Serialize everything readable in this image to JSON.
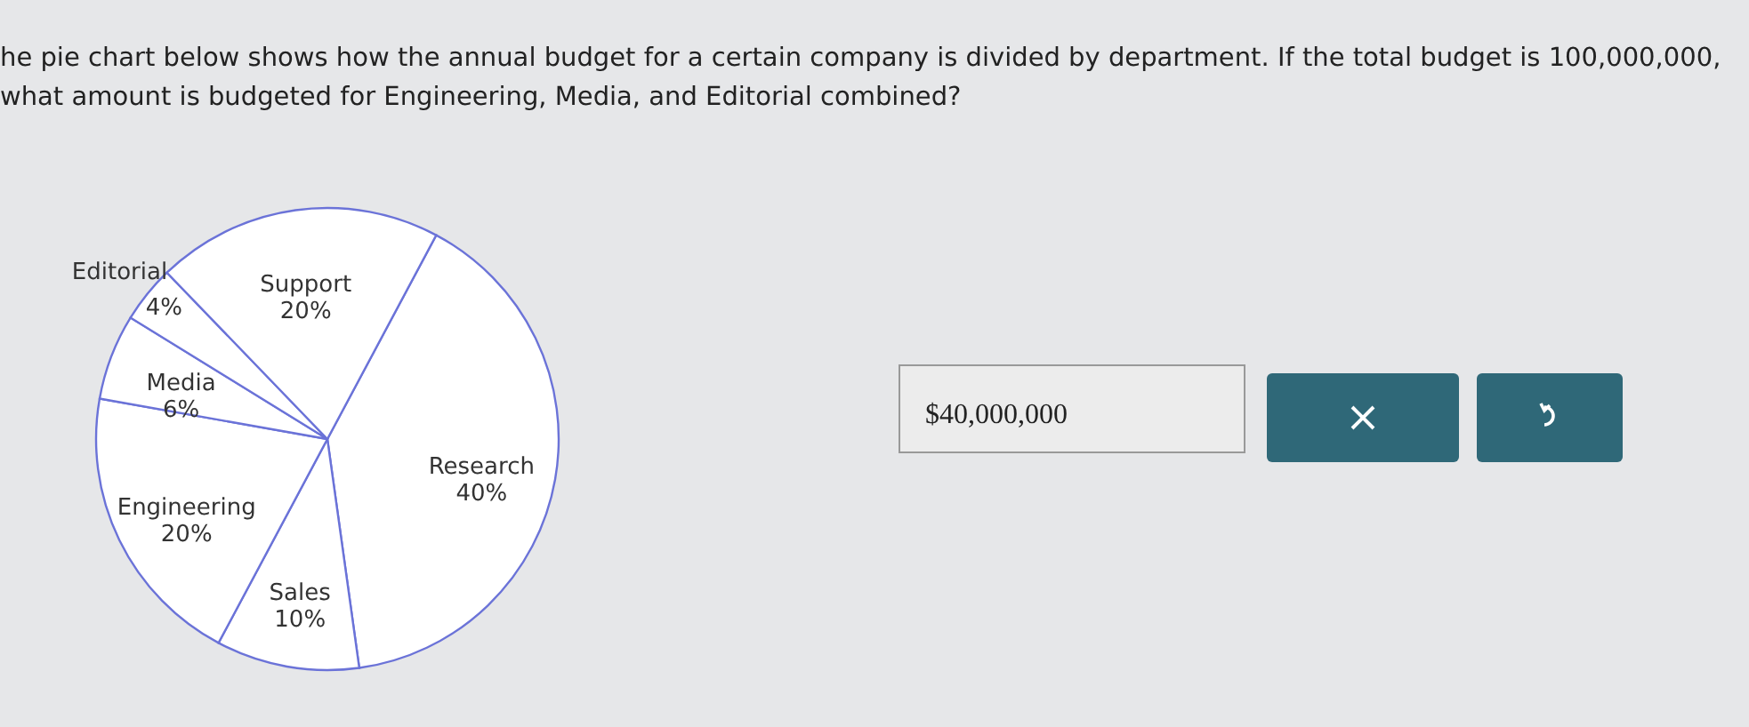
{
  "chart_data": {
    "type": "pie",
    "title": "he pie chart below shows how the annual budget for a certain company is divided by department. If the total budget is 100,000,000, what amount is budgeted for Engineering, Media, and Editorial combined?",
    "categories": [
      "Research",
      "Sales",
      "Engineering",
      "Media",
      "Editorial",
      "Support"
    ],
    "values": [
      40,
      10,
      20,
      6,
      4,
      20
    ],
    "value_labels": [
      "40%",
      "10%",
      "20%",
      "6%",
      "4%",
      "20%"
    ],
    "colors": [
      "#ffffff",
      "#ffffff",
      "#ffffff",
      "#ffffff",
      "#ffffff",
      "#ffffff"
    ],
    "annotations": [
      "$40,000,000"
    ]
  }
}
